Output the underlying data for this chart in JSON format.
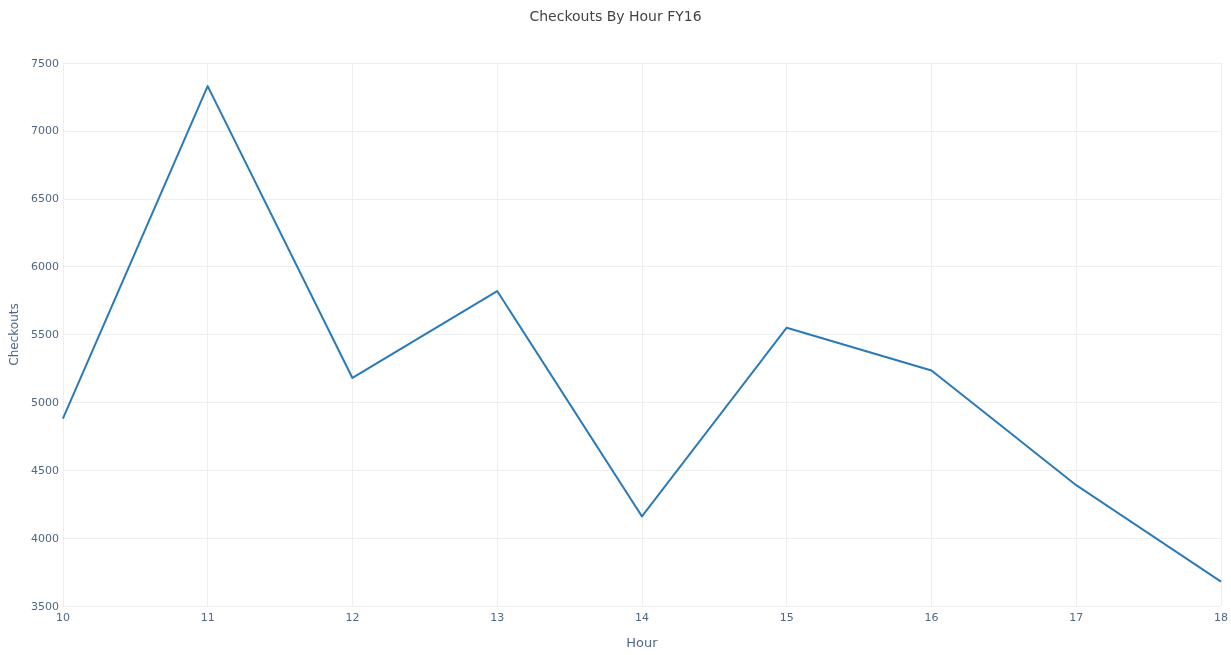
{
  "chart_data": {
    "type": "line",
    "title": "Checkouts By Hour FY16",
    "xlabel": "Hour",
    "ylabel": "Checkouts",
    "x": [
      10,
      11,
      12,
      13,
      14,
      15,
      16,
      17,
      18
    ],
    "series": [
      {
        "color": "#2a7ab8",
        "values": [
          4880,
          7330,
          5180,
          5820,
          4160,
          5550,
          5235,
          4390,
          3680
        ]
      }
    ],
    "xlim": [
      10,
      18
    ],
    "xticks": [
      10,
      11,
      12,
      13,
      14,
      15,
      16,
      17,
      18
    ],
    "ylim": [
      3500,
      7500
    ],
    "yticks": [
      3500,
      4000,
      4500,
      5000,
      5500,
      6000,
      6500,
      7000,
      7500
    ],
    "grid": true,
    "marker": "none"
  }
}
